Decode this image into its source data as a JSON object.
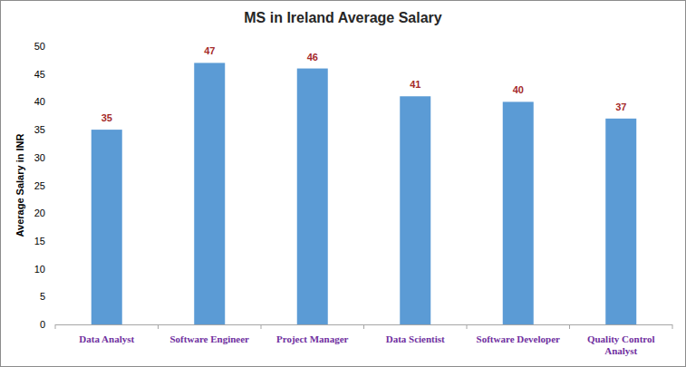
{
  "chart_data": {
    "type": "bar",
    "title": "MS in Ireland Average Salary",
    "y_label": "Average Salary in INR",
    "categories": [
      "Data Analyst",
      "Software Engineer",
      "Project Manager",
      "Data Scientist",
      "Software Developer",
      "Quality Control Analyst"
    ],
    "values": [
      35,
      47,
      46,
      41,
      40,
      37
    ],
    "color": "#5b9bd5",
    "ylim": [
      0,
      50
    ],
    "yticks": [
      0,
      5,
      10,
      15,
      20,
      25,
      30,
      35,
      40,
      45,
      50
    ],
    "grid": false,
    "data_labels": true
  }
}
